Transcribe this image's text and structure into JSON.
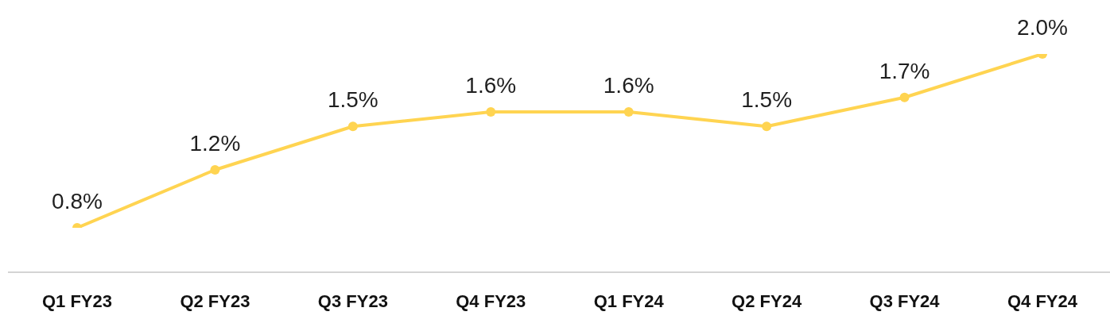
{
  "chart_data": {
    "type": "line",
    "categories": [
      "Q1 FY23",
      "Q2 FY23",
      "Q3 FY23",
      "Q4 FY23",
      "Q1 FY24",
      "Q2 FY24",
      "Q3 FY24",
      "Q4 FY24"
    ],
    "series": [
      {
        "color": "#ffd451",
        "values": [
          0.8,
          1.2,
          1.5,
          1.6,
          1.6,
          1.5,
          1.7,
          2.0
        ],
        "value_labels": [
          "0.8%",
          "1.2%",
          "1.5%",
          "1.6%",
          "1.6%",
          "1.5%",
          "1.7%",
          "2.0%"
        ]
      }
    ],
    "tick_labels": "x",
    "grid": false,
    "legend": false,
    "marker": "circle",
    "line_style": "solid"
  }
}
